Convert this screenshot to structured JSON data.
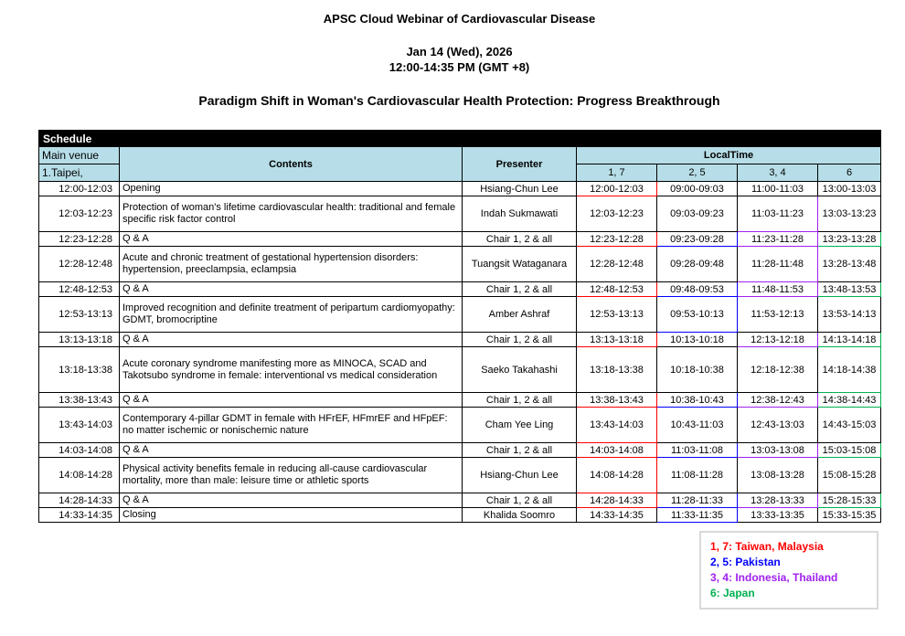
{
  "header": {
    "title": "APSC Cloud Webinar of Cardiovascular Disease",
    "date": "Jan 14 (Wed), 2026",
    "time": "12:00-14:35 PM (GMT +8)",
    "subtitle": "Paradigm Shift in Woman's Cardiovascular Health Protection: Progress Breakthrough"
  },
  "colors": {
    "red": "#FF0000",
    "blue": "#0000FF",
    "purple": "#A020F0",
    "green": "#00B050",
    "header_fill": "#B7DEE8",
    "schedule_bar": "#000000"
  },
  "table": {
    "schedule_label": "Schedule",
    "venue_line1": "Main venue",
    "venue_line2": "1.Taipei,",
    "contents_header": "Contents",
    "presenter_header": "Presenter",
    "localtime_header": "LocalTime",
    "zone_headers": [
      "1, 7",
      "2, 5",
      "3, 4",
      "6"
    ],
    "rows": [
      {
        "time": "12:00-12:03",
        "contents": "Opening",
        "presenter": "Hsiang-Chun Lee",
        "lines": 1,
        "local": [
          {
            "t": "12:00-12:03",
            "c": "red"
          },
          {
            "t": "09:00-09:03"
          },
          {
            "t": "11:00-11:03"
          },
          {
            "t": "13:00-13:03"
          }
        ]
      },
      {
        "time": "12:03-12:23",
        "contents": "Protection of woman's lifetime cardiovascular health: traditional and female specific risk factor control",
        "presenter": "Indah Sukmawati",
        "lines": 2,
        "local": [
          {
            "t": "12:03-12:23"
          },
          {
            "t": "09:03-09:23"
          },
          {
            "t": "11:03-11:23",
            "c": "purple"
          },
          {
            "t": "13:03-13:23"
          }
        ]
      },
      {
        "time": "12:23-12:28",
        "contents": "Q & A",
        "presenter": "Chair 1, 2 & all",
        "lines": 1,
        "local": [
          {
            "t": "12:23-12:28",
            "c": "red"
          },
          {
            "t": "09:23-09:28",
            "c": "blue"
          },
          {
            "t": "11:23-11:28",
            "c": "purple"
          },
          {
            "t": "13:23-13:28",
            "c": "green"
          }
        ]
      },
      {
        "time": "12:28-12:48",
        "contents": "Acute and chronic treatment of gestational hypertension disorders: hypertension, preeclampsia, eclampsia",
        "presenter": "Tuangsit Wataganara",
        "lines": 2,
        "local": [
          {
            "t": "12:28-12:48"
          },
          {
            "t": "09:28-09:48"
          },
          {
            "t": "11:28-11:48",
            "c": "purple"
          },
          {
            "t": "13:28-13:48"
          }
        ]
      },
      {
        "time": "12:48-12:53",
        "contents": "Q & A",
        "presenter": "Chair 1, 2 & all",
        "lines": 1,
        "local": [
          {
            "t": "12:48-12:53",
            "c": "red"
          },
          {
            "t": "09:48-09:53",
            "c": "blue"
          },
          {
            "t": "11:48-11:53",
            "c": "purple"
          },
          {
            "t": "13:48-13:53",
            "c": "green"
          }
        ]
      },
      {
        "time": "12:53-13:13",
        "contents": "Improved recognition and definite treatment of peripartum cardiomyopathy: GDMT, bromocriptine",
        "presenter": "Amber Ashraf",
        "lines": 2,
        "local": [
          {
            "t": "12:53-13:13"
          },
          {
            "t": "09:53-10:13",
            "c": "blue"
          },
          {
            "t": "11:53-12:13"
          },
          {
            "t": "13:53-14:13"
          }
        ]
      },
      {
        "time": "13:13-13:18",
        "contents": "Q & A",
        "presenter": "Chair 1, 2 & all",
        "lines": 1,
        "local": [
          {
            "t": "13:13-13:18",
            "c": "red"
          },
          {
            "t": "10:13-10:18"
          },
          {
            "t": "12:13-12:18",
            "c": "purple"
          },
          {
            "t": "14:13-14:18",
            "c": "green"
          }
        ]
      },
      {
        "time": "13:18-13:38",
        "contents": "Acute coronary syndrome manifesting more as MINOCA, SCAD and Takotsubo syndrome in female: interventional vs medical consideration",
        "presenter": "Saeko Takahashi",
        "lines": 3,
        "local": [
          {
            "t": "13:18-13:38"
          },
          {
            "t": "10:18-10:38"
          },
          {
            "t": "12:18-12:38"
          },
          {
            "t": "14:18-14:38",
            "c": "green"
          }
        ]
      },
      {
        "time": "13:38-13:43",
        "contents": "Q & A",
        "presenter": "Chair 1, 2 & all",
        "lines": 1,
        "local": [
          {
            "t": "13:38-13:43",
            "c": "red"
          },
          {
            "t": "10:38-10:43",
            "c": "blue"
          },
          {
            "t": "12:38-12:43",
            "c": "purple"
          },
          {
            "t": "14:38-14:43",
            "c": "green"
          }
        ]
      },
      {
        "time": "13:43-14:03",
        "contents": "Contemporary 4-pillar GDMT in female with HFrEF, HFmrEF and HFpEF: no matter ischemic or nonischemic nature",
        "presenter": "Cham Yee Ling",
        "lines": 2,
        "local": [
          {
            "t": "13:43-14:03",
            "c": "red"
          },
          {
            "t": "10:43-11:03"
          },
          {
            "t": "12:43-13:03"
          },
          {
            "t": "14:43-15:03"
          }
        ]
      },
      {
        "time": "14:03-14:08",
        "contents": "Q & A",
        "presenter": "Chair 1, 2 & all",
        "lines": 1,
        "local": [
          {
            "t": "14:03-14:08",
            "c": "red"
          },
          {
            "t": "11:03-11:08",
            "c": "blue"
          },
          {
            "t": "13:03-13:08",
            "c": "purple"
          },
          {
            "t": "15:03-15:08",
            "c": "green"
          }
        ]
      },
      {
        "time": "14:08-14:28",
        "contents": "Physical activity benefits female in reducing all-cause cardiovascular mortality, more than male: leisure time or athletic sports",
        "presenter": "Hsiang-Chun Lee",
        "lines": 2,
        "local": [
          {
            "t": "14:08-14:28",
            "c": "red"
          },
          {
            "t": "11:08-11:28"
          },
          {
            "t": "13:08-13:28"
          },
          {
            "t": "15:08-15:28"
          }
        ]
      },
      {
        "time": "14:28-14:33",
        "contents": "Q & A",
        "presenter": "Chair 1, 2 & all",
        "lines": 1,
        "local": [
          {
            "t": "14:28-14:33",
            "c": "red"
          },
          {
            "t": "11:28-11:33",
            "c": "blue"
          },
          {
            "t": "13:28-13:33",
            "c": "purple"
          },
          {
            "t": "15:28-15:33",
            "c": "green"
          }
        ]
      },
      {
        "time": "14:33-14:35",
        "contents": "Closing",
        "presenter": "Khalida Soomro",
        "lines": 1,
        "local": [
          {
            "t": "14:33-14:35"
          },
          {
            "t": "11:33-11:35",
            "c": "blue"
          },
          {
            "t": "13:33-13:35"
          },
          {
            "t": "15:33-15:35"
          }
        ]
      }
    ]
  },
  "legend": {
    "items": [
      {
        "label": "1, 7: Taiwan, Malaysia",
        "color": "red"
      },
      {
        "label": "2, 5: Pakistan",
        "color": "blue"
      },
      {
        "label": "3, 4: Indonesia, Thailand",
        "color": "purple"
      },
      {
        "label": "6: Japan",
        "color": "green"
      }
    ]
  }
}
